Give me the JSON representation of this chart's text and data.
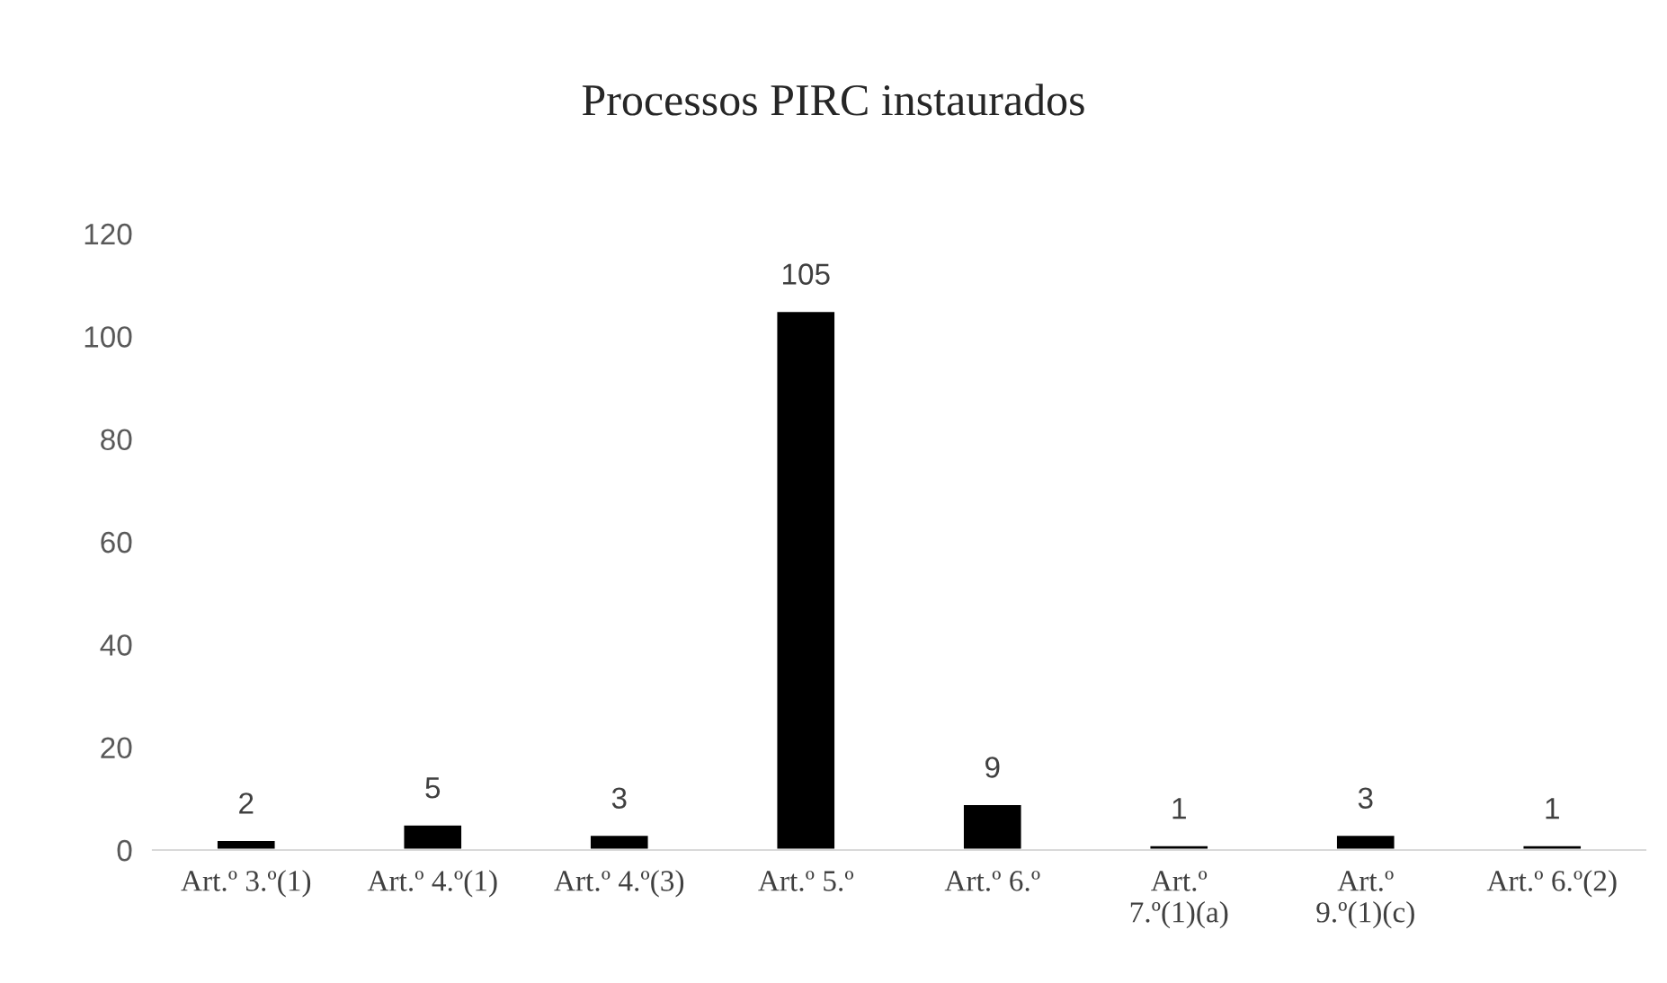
{
  "chart_data": {
    "type": "bar",
    "title": "Processos PIRC instaurados",
    "categories": [
      "Art.º 3.º(1)",
      "Art.º 4.º(1)",
      "Art.º 4.º(3)",
      "Art.º 5.º",
      "Art.º 6.º",
      "Art.º 7.º(1)(a)",
      "Art.º 9.º(1)(c)",
      "Art.º 6.º(2)"
    ],
    "values": [
      2,
      5,
      3,
      105,
      9,
      1,
      3,
      1
    ],
    "color": "#000000",
    "ylim": [
      0,
      120
    ],
    "yticks": [
      0,
      20,
      40,
      60,
      80,
      100,
      120
    ],
    "grid": false,
    "data_labels": true
  }
}
